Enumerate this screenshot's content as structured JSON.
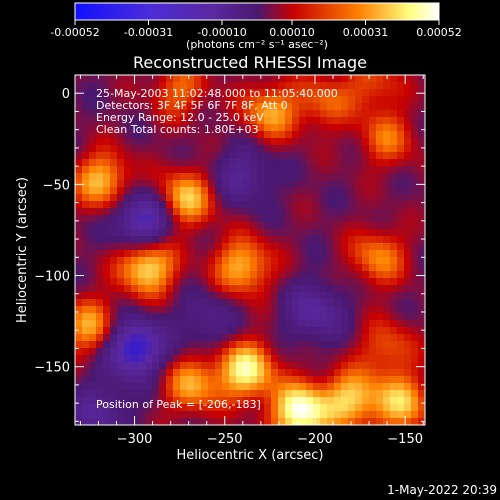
{
  "chart_data": {
    "type": "heatmap",
    "title": "Reconstructed RHESSI Image",
    "xlabel": "Heliocentric X (arcsec)",
    "ylabel": "Heliocentric Y (arcsec)",
    "xlim": [
      -333,
      -139
    ],
    "ylim": [
      -182,
      10
    ],
    "x_ticks": [
      -300,
      -250,
      -200,
      -150
    ],
    "y_ticks": [
      0,
      -50,
      -100,
      -150
    ],
    "colorbar": {
      "range": [
        -0.00052,
        0.00052
      ],
      "ticks": [
        "-0.00052",
        "-0.00031",
        "-0.00010",
        "0.00010",
        "0.00031",
        "0.00052"
      ],
      "label": "(photons cm⁻² s⁻¹ asec⁻²)"
    },
    "colors": {
      "neg_max": "#1010ff",
      "neg_mid": "#5a28a0",
      "zero": "#4a1870",
      "pos_low": "#c80000",
      "pos_mid": "#ff8000",
      "pos_high": "#ffff80",
      "pos_max": "#ffffff"
    },
    "annotations": [
      "25-May-2003 11:02:48.000 to 11:05:40.000",
      "Detectors: 3F 4F 5F 6F 7F 8F, Att 0",
      "Energy Range: 12.0 - 25.0 keV",
      "Clean     Total counts: 1.80E+03"
    ],
    "peak_label": "Position of Peak = [-206,-183]",
    "peak": [
      -206,
      -183
    ],
    "sources": [
      {
        "x": -225,
        "y": -10,
        "value": 0.0003
      },
      {
        "x": -275,
        "y": 2,
        "value": 0.00022
      },
      {
        "x": -195,
        "y": -5,
        "value": 0.0002
      },
      {
        "x": -160,
        "y": -25,
        "value": 0.00022
      },
      {
        "x": -168,
        "y": 5,
        "value": 0.00018
      },
      {
        "x": -318,
        "y": -48,
        "value": 0.00034
      },
      {
        "x": -272,
        "y": -58,
        "value": 0.00036
      },
      {
        "x": -293,
        "y": -95,
        "value": 0.00042
      },
      {
        "x": -240,
        "y": -95,
        "value": 0.00034
      },
      {
        "x": -325,
        "y": -128,
        "value": 0.0003
      },
      {
        "x": -165,
        "y": -90,
        "value": 0.00026
      },
      {
        "x": -238,
        "y": -152,
        "value": 0.00044
      },
      {
        "x": -268,
        "y": -160,
        "value": 0.0003
      },
      {
        "x": -208,
        "y": -175,
        "value": 0.00052
      },
      {
        "x": -180,
        "y": -168,
        "value": 0.00036
      },
      {
        "x": -152,
        "y": -170,
        "value": 0.00034
      },
      {
        "x": -160,
        "y": -140,
        "value": 0.0002
      },
      {
        "x": -300,
        "y": -140,
        "value": -0.00046
      },
      {
        "x": -295,
        "y": -70,
        "value": -0.0004
      },
      {
        "x": -240,
        "y": -45,
        "value": -0.00022
      },
      {
        "x": -200,
        "y": -120,
        "value": -0.00026
      },
      {
        "x": -320,
        "y": -175,
        "value": -0.00022
      },
      {
        "x": -260,
        "y": -125,
        "value": -0.00016
      }
    ]
  },
  "footer": {
    "date": "1-May-2022 20:39"
  }
}
